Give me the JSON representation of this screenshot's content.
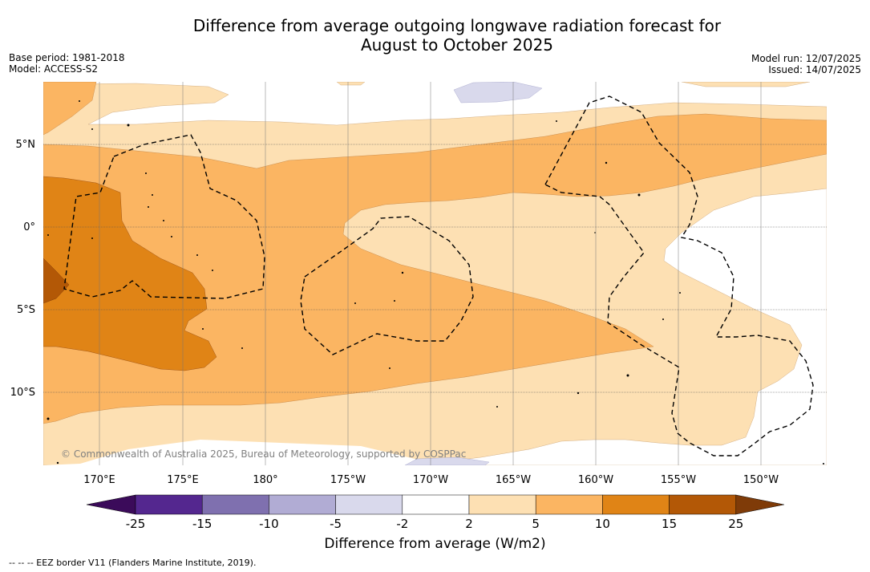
{
  "title_line1": "Difference from average outgoing longwave radiation forecast for",
  "title_line2": "August to October 2025",
  "base_period": "Base period: 1981-2018",
  "model": "Model: ACCESS-S2",
  "model_run": "Model run: 12/07/2025",
  "issued": "Issued: 14/07/2025",
  "lat_labels": [
    "5°N",
    "0°",
    "5°S",
    "10°S"
  ],
  "lon_labels": [
    "170°E",
    "175°E",
    "180°",
    "175°W",
    "170°W",
    "165°W",
    "160°W",
    "155°W",
    "150°W"
  ],
  "copyright": "© Commonwealth of Australia 2025, Bureau of Meteorology, supported by COSPPac",
  "colorbar": {
    "ticks": [
      "-25",
      "-15",
      "-10",
      "-5",
      "-2",
      "2",
      "5",
      "10",
      "15",
      "25"
    ],
    "colors": [
      "#3b0b5a",
      "#54278f",
      "#7f70af",
      "#b1acd4",
      "#d9d9ec",
      "#ffffff",
      "#fde0b3",
      "#fbb562",
      "#e08416",
      "#b35806",
      "#7f3b08"
    ],
    "label": "Difference from average (W/m2)"
  },
  "footer": "--  --  -- EEZ border V11 (Flanders Marine Institute, 2019)."
}
